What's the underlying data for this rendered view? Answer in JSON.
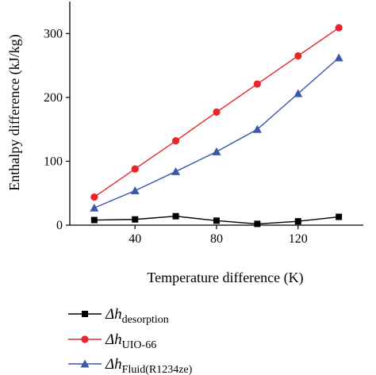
{
  "chart_data": {
    "type": "line",
    "x": [
      20,
      40,
      60,
      80,
      100,
      120,
      140
    ],
    "xlabel": "Temperature difference (K)",
    "ylabel": "Enthalpy difference (kJ/kg)",
    "xticks": [
      40,
      80,
      120
    ],
    "yticks": [
      0,
      100,
      200,
      300
    ],
    "xlim": [
      8,
      152
    ],
    "ylim": [
      0,
      350
    ],
    "grid": false,
    "legend_placement": "bottom-left, below plot",
    "series": [
      {
        "name_main": "Δh",
        "name_sub": "desorption",
        "color": "#000000",
        "marker": "square",
        "values": [
          8,
          9,
          14,
          7,
          2,
          6,
          13
        ]
      },
      {
        "name_main": "Δh",
        "name_sub": "UIO-66",
        "color": "#e8262a",
        "marker": "circle",
        "values": [
          44,
          88,
          132,
          177,
          221,
          265,
          309
        ]
      },
      {
        "name_main": "Δh",
        "name_sub": "Fluid(R1234ze)",
        "color": "#3a58a8",
        "marker": "triangle",
        "values": [
          27,
          54,
          84,
          115,
          150,
          206,
          262
        ]
      }
    ]
  }
}
